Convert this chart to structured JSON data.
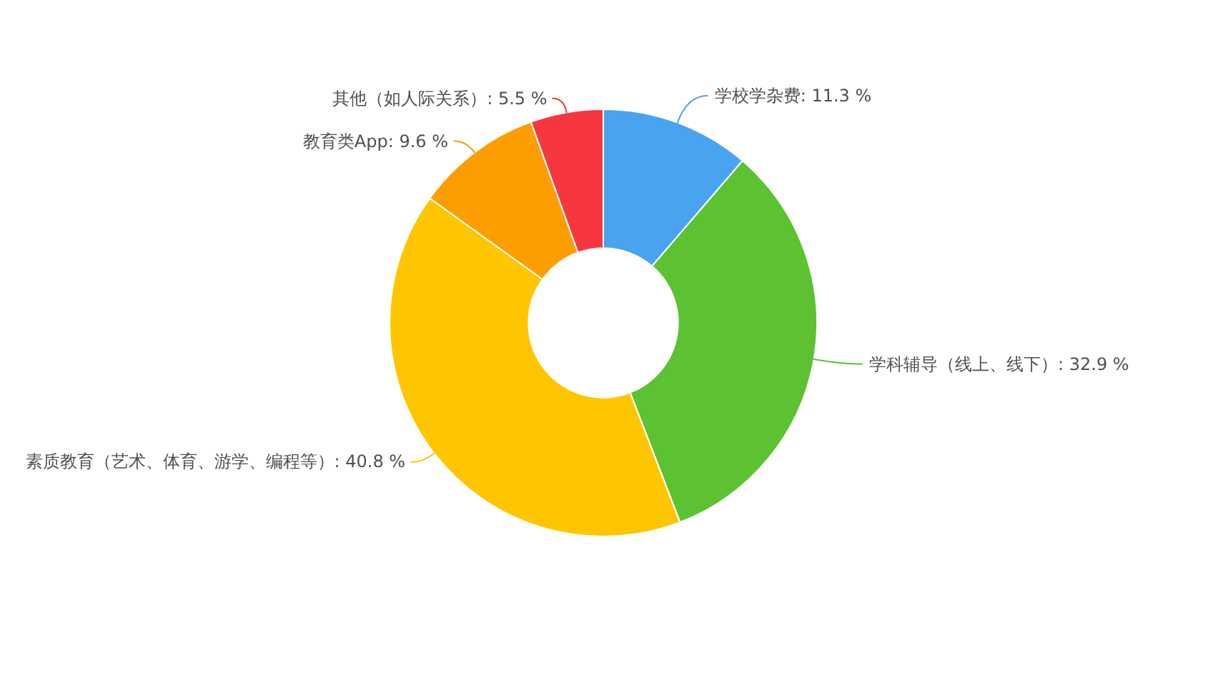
{
  "chart_data": {
    "type": "donut",
    "categories": [
      "学校学杂费",
      "学科辅导（线上、线下）",
      "素质教育（艺术、体育、游学、编程等）",
      "教育类App",
      "其他（如人际关系）"
    ],
    "values": [
      11.3,
      32.9,
      40.8,
      9.6,
      5.5
    ],
    "colors": [
      "#4aa3ef",
      "#5cc232",
      "#fec600",
      "#fd9e00",
      "#f6373f"
    ],
    "value_labels": [
      "11.3 %",
      "32.9 %",
      "40.8 %",
      "9.6 %",
      "5.5 %"
    ]
  }
}
